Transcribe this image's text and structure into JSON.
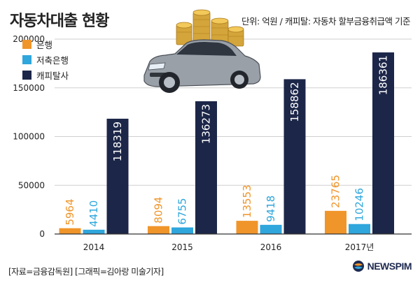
{
  "title": "자동차대출 현황",
  "unit_note": "단위: 억원 / 캐피탈: 자동차 할부금융취급액 기준",
  "credit": "[자료=금융감독원] [그래픽=김아랑 미술기자]",
  "logo_text": "NEWSPIM",
  "colors": {
    "bank": "#f0952a",
    "savings": "#2fa6dc",
    "capital": "#1c2648",
    "grid": "#cfcfcf",
    "axis": "#333333"
  },
  "chart_data": {
    "type": "bar",
    "categories": [
      "2014",
      "2015",
      "2016",
      "2017년"
    ],
    "series": [
      {
        "name": "은행",
        "values": [
          5964,
          8094,
          13553,
          23765
        ]
      },
      {
        "name": "저축은행",
        "values": [
          4410,
          6755,
          9418,
          10246
        ]
      },
      {
        "name": "캐피탈사",
        "values": [
          118319,
          136273,
          158862,
          186361
        ]
      }
    ],
    "yticks": [
      "0",
      "50000",
      "100000",
      "150000",
      "200000"
    ],
    "ylim": [
      0,
      200000
    ],
    "grid": true,
    "legend_position": "top-left"
  }
}
